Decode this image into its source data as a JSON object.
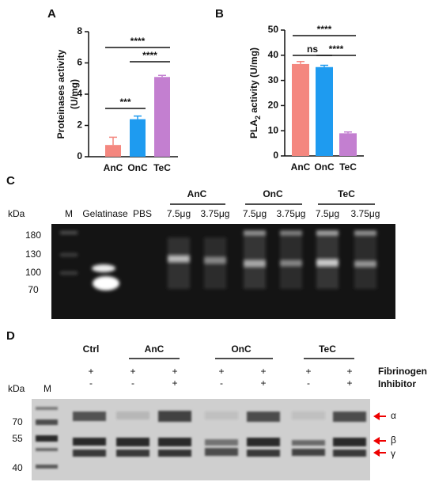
{
  "chart_data": [
    {
      "type": "bar",
      "panel": "A",
      "y_label": [
        "Proteinases activity",
        "(U/mg)"
      ],
      "categories": [
        "AnC",
        "OnC",
        "TeC"
      ],
      "values": [
        0.75,
        2.4,
        5.1
      ],
      "errors": [
        0.5,
        0.2,
        0.1
      ],
      "colors": [
        "#f4877f",
        "#1e9bf0",
        "#c37fd0"
      ],
      "ylim": [
        0,
        8
      ],
      "yticks": [
        0,
        2,
        4,
        6,
        8
      ],
      "significance": [
        {
          "label": "***",
          "between": [
            "AnC",
            "OnC"
          ]
        },
        {
          "label": "****",
          "between": [
            "OnC",
            "TeC"
          ]
        },
        {
          "label": "****",
          "between": [
            "AnC",
            "TeC"
          ]
        }
      ]
    },
    {
      "type": "bar",
      "panel": "B",
      "y_label": [
        "PLA",
        "2",
        " activity (U/mg)"
      ],
      "categories": [
        "AnC",
        "OnC",
        "TeC"
      ],
      "values": [
        36.5,
        35.3,
        9
      ],
      "errors": [
        1,
        0.7,
        0.5
      ],
      "colors": [
        "#f4877f",
        "#1e9bf0",
        "#c37fd0"
      ],
      "ylim": [
        0,
        50
      ],
      "yticks": [
        0,
        10,
        20,
        30,
        40,
        50
      ],
      "significance": [
        {
          "label": "ns",
          "between": [
            "AnC",
            "OnC"
          ]
        },
        {
          "label": "****",
          "between": [
            "OnC",
            "TeC"
          ]
        },
        {
          "label": "****",
          "between": [
            "AnC",
            "TeC"
          ]
        }
      ]
    }
  ],
  "gel_c": {
    "panel": "C",
    "kda": "kDa",
    "lanes": [
      "M",
      "Gelatinase",
      "PBS"
    ],
    "groups": [
      {
        "name": "AnC",
        "doses": [
          "7.5μg",
          "3.75μg"
        ]
      },
      {
        "name": "OnC",
        "doses": [
          "7.5μg",
          "3.75μg"
        ]
      },
      {
        "name": "TeC",
        "doses": [
          "7.5μg",
          "3.75μg"
        ]
      }
    ],
    "markers": [
      "180",
      "130",
      "100",
      "70"
    ]
  },
  "gel_d": {
    "panel": "D",
    "groups": [
      "Ctrl",
      "AnC",
      "OnC",
      "TeC"
    ],
    "rows": [
      {
        "label": "Fibrinogen",
        "signs": [
          "+",
          "+",
          "+",
          "+",
          "+",
          "+",
          "+"
        ]
      },
      {
        "label": "Inhibitor",
        "signs": [
          "-",
          "-",
          "+",
          "-",
          "+",
          "-",
          "+"
        ]
      }
    ],
    "kda": "kDa",
    "marker_lane": "M",
    "markers": [
      "70",
      "55",
      "40"
    ],
    "chains": [
      "α",
      "β",
      "γ"
    ]
  }
}
